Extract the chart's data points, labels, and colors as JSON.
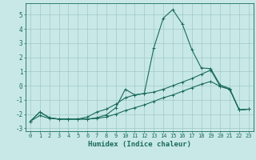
{
  "title": "",
  "xlabel": "Humidex (Indice chaleur)",
  "background_color": "#c8e8e8",
  "line_color": "#1a6b5a",
  "grid_color": "#a0c8c8",
  "xlim": [
    -0.5,
    23.5
  ],
  "ylim": [
    -3.2,
    5.8
  ],
  "yticks": [
    -3,
    -2,
    -1,
    0,
    1,
    2,
    3,
    4,
    5
  ],
  "xticks": [
    0,
    1,
    2,
    3,
    4,
    5,
    6,
    7,
    8,
    9,
    10,
    11,
    12,
    13,
    14,
    15,
    16,
    17,
    18,
    19,
    20,
    21,
    22,
    23
  ],
  "line1_x": [
    0,
    1,
    2,
    3,
    4,
    5,
    6,
    7,
    8,
    9,
    10,
    11,
    12,
    13,
    14,
    15,
    16,
    17,
    18,
    19,
    20,
    21,
    22,
    23
  ],
  "line1_y": [
    -2.5,
    -1.85,
    -2.25,
    -2.35,
    -2.35,
    -2.35,
    -2.35,
    -2.25,
    -2.05,
    -1.55,
    -0.25,
    -0.65,
    -0.55,
    2.65,
    4.75,
    5.35,
    4.35,
    2.55,
    1.25,
    1.2,
    0.05,
    -0.2,
    -1.7,
    -1.65
  ],
  "line2_x": [
    0,
    1,
    2,
    3,
    4,
    5,
    6,
    7,
    8,
    9,
    10,
    11,
    12,
    13,
    14,
    15,
    16,
    17,
    18,
    19,
    20,
    21,
    22,
    23
  ],
  "line2_y": [
    -2.5,
    -1.85,
    -2.25,
    -2.35,
    -2.35,
    -2.35,
    -2.2,
    -1.85,
    -1.65,
    -1.3,
    -0.85,
    -0.65,
    -0.55,
    -0.45,
    -0.25,
    0.0,
    0.25,
    0.5,
    0.8,
    1.1,
    -0.05,
    -0.25,
    -1.7,
    -1.65
  ],
  "line3_x": [
    0,
    1,
    2,
    3,
    4,
    5,
    6,
    7,
    8,
    9,
    10,
    11,
    12,
    13,
    14,
    15,
    16,
    17,
    18,
    19,
    20,
    21,
    22,
    23
  ],
  "line3_y": [
    -2.5,
    -2.1,
    -2.3,
    -2.35,
    -2.35,
    -2.35,
    -2.35,
    -2.3,
    -2.2,
    -2.0,
    -1.75,
    -1.55,
    -1.35,
    -1.1,
    -0.85,
    -0.65,
    -0.4,
    -0.15,
    0.1,
    0.3,
    -0.05,
    -0.25,
    -1.7,
    -1.65
  ]
}
